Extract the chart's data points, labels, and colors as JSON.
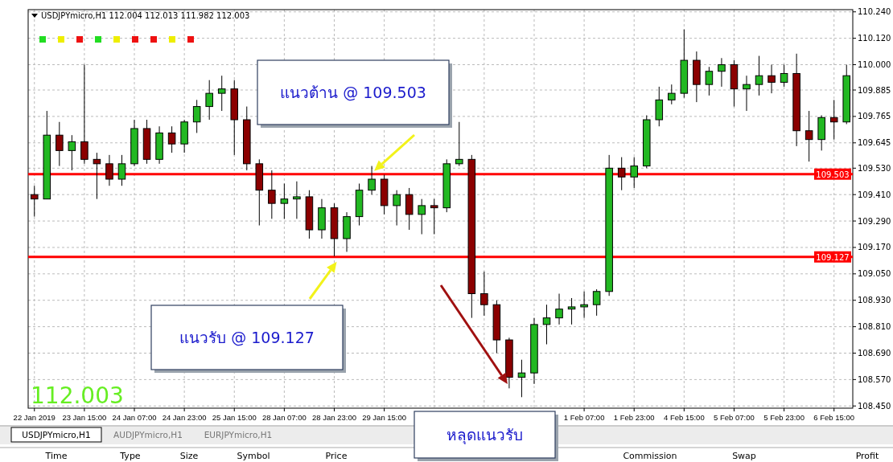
{
  "chart_data": {
    "type": "candlestick",
    "title": "USDJPYmicro,H1 112.004 112.013 111.982 112.003",
    "categories": [
      "22 Jan 2019",
      null,
      null,
      null,
      "23 Jan 15:00",
      null,
      null,
      null,
      "24 Jan 07:00",
      null,
      null,
      null,
      "24 Jan 23:00",
      null,
      null,
      null,
      "25 Jan 15:00",
      null,
      null,
      null,
      "28 Jan 07:00",
      null,
      null,
      null,
      "28 Jan 23:00",
      null,
      null,
      null,
      "29 Jan 15:00",
      null,
      null,
      null,
      null,
      null,
      null,
      null,
      null,
      null,
      null,
      null,
      null,
      null,
      null,
      null,
      "1 Feb 07:00",
      null,
      null,
      null,
      "1 Feb 23:00",
      null,
      null,
      null,
      "4 Feb 15:00",
      null,
      null,
      null,
      "5 Feb 07:00",
      null,
      null,
      null,
      "5 Feb 23:00",
      null,
      null,
      null,
      "6 Feb 15:00",
      null
    ],
    "ohlc": [
      [
        109.41,
        109.45,
        109.31,
        109.39
      ],
      [
        109.39,
        109.79,
        109.39,
        109.68
      ],
      [
        109.68,
        109.74,
        109.54,
        109.61
      ],
      [
        109.61,
        109.68,
        109.52,
        109.65
      ],
      [
        109.65,
        110.0,
        109.55,
        109.57
      ],
      [
        109.57,
        109.6,
        109.39,
        109.55
      ],
      [
        109.55,
        109.59,
        109.45,
        109.48
      ],
      [
        109.48,
        109.59,
        109.45,
        109.55
      ],
      [
        109.55,
        109.75,
        109.54,
        109.71
      ],
      [
        109.71,
        109.75,
        109.55,
        109.57
      ],
      [
        109.57,
        109.72,
        109.55,
        109.69
      ],
      [
        109.69,
        109.72,
        109.6,
        109.64
      ],
      [
        109.64,
        109.75,
        109.6,
        109.74
      ],
      [
        109.74,
        109.84,
        109.69,
        109.81
      ],
      [
        109.81,
        109.93,
        109.75,
        109.87
      ],
      [
        109.87,
        109.95,
        109.79,
        109.89
      ],
      [
        109.89,
        109.93,
        109.59,
        109.75
      ],
      [
        109.75,
        109.81,
        109.52,
        109.55
      ],
      [
        109.55,
        109.57,
        109.27,
        109.43
      ],
      [
        109.43,
        109.52,
        109.3,
        109.37
      ],
      [
        109.37,
        109.46,
        109.3,
        109.39
      ],
      [
        109.39,
        109.47,
        109.3,
        109.4
      ],
      [
        109.4,
        109.43,
        109.21,
        109.25
      ],
      [
        109.25,
        109.39,
        109.21,
        109.35
      ],
      [
        109.35,
        109.37,
        109.13,
        109.21
      ],
      [
        109.21,
        109.33,
        109.15,
        109.31
      ],
      [
        109.31,
        109.46,
        109.27,
        109.43
      ],
      [
        109.43,
        109.54,
        109.41,
        109.48
      ],
      [
        109.48,
        109.5,
        109.32,
        109.36
      ],
      [
        109.36,
        109.43,
        109.27,
        109.41
      ],
      [
        109.41,
        109.44,
        109.25,
        109.32
      ],
      [
        109.32,
        109.39,
        109.23,
        109.36
      ],
      [
        109.36,
        109.39,
        109.23,
        109.35
      ],
      [
        109.35,
        109.57,
        109.33,
        109.55
      ],
      [
        109.55,
        109.74,
        109.54,
        109.57
      ],
      [
        109.57,
        109.59,
        108.85,
        108.96
      ],
      [
        108.96,
        109.06,
        108.86,
        108.91
      ],
      [
        108.91,
        108.93,
        108.69,
        108.75
      ],
      [
        108.75,
        108.76,
        108.53,
        108.58
      ],
      [
        108.58,
        108.66,
        108.49,
        108.6
      ],
      [
        108.6,
        108.85,
        108.55,
        108.82
      ],
      [
        108.82,
        108.91,
        108.73,
        108.85
      ],
      [
        108.85,
        108.96,
        108.82,
        108.89
      ],
      [
        108.89,
        108.94,
        108.82,
        108.9
      ],
      [
        108.9,
        108.97,
        108.85,
        108.91
      ],
      [
        108.91,
        108.98,
        108.86,
        108.97
      ],
      [
        108.97,
        109.59,
        108.95,
        109.53
      ],
      [
        109.53,
        109.58,
        109.43,
        109.49
      ],
      [
        109.49,
        109.58,
        109.44,
        109.54
      ],
      [
        109.54,
        109.77,
        109.53,
        109.75
      ],
      [
        109.75,
        109.9,
        109.72,
        109.84
      ],
      [
        109.84,
        109.91,
        109.82,
        109.87
      ],
      [
        109.87,
        110.16,
        109.85,
        110.02
      ],
      [
        110.02,
        110.06,
        109.83,
        109.91
      ],
      [
        109.91,
        109.99,
        109.86,
        109.97
      ],
      [
        109.97,
        110.03,
        109.9,
        110.0
      ],
      [
        110.0,
        110.02,
        109.81,
        109.89
      ],
      [
        109.89,
        109.95,
        109.79,
        109.91
      ],
      [
        109.91,
        110.04,
        109.86,
        109.95
      ],
      [
        109.95,
        110.0,
        109.87,
        109.92
      ],
      [
        109.92,
        110.0,
        109.9,
        109.96
      ],
      [
        109.96,
        110.05,
        109.63,
        109.7
      ],
      [
        109.7,
        109.79,
        109.56,
        109.66
      ],
      [
        109.66,
        109.77,
        109.61,
        109.76
      ],
      [
        109.76,
        109.84,
        109.66,
        109.74
      ],
      [
        109.74,
        110.0,
        109.73,
        109.95
      ]
    ],
    "colors": [
      "#8b0000",
      "#22b822",
      "#8b0000",
      "#22b822",
      "#8b0000",
      "#8b0000",
      "#8b0000",
      "#22b822",
      "#22b822",
      "#8b0000",
      "#22b822",
      "#8b0000",
      "#22b822",
      "#22b822",
      "#22b822",
      "#22b822",
      "#8b0000",
      "#8b0000",
      "#8b0000",
      "#8b0000",
      "#22b822",
      "#22b822",
      "#8b0000",
      "#22b822",
      "#8b0000",
      "#22b822",
      "#22b822",
      "#22b822",
      "#8b0000",
      "#22b822",
      "#8b0000",
      "#22b822",
      "#8b0000",
      "#22b822",
      "#22b822",
      "#8b0000",
      "#8b0000",
      "#8b0000",
      "#8b0000",
      "#22b822",
      "#22b822",
      "#22b822",
      "#22b822",
      "#22b822",
      "#22b822",
      "#22b822",
      "#22b822",
      "#8b0000",
      "#22b822",
      "#22b822",
      "#22b822",
      "#22b822",
      "#22b822",
      "#8b0000",
      "#22b822",
      "#22b822",
      "#8b0000",
      "#22b822",
      "#22b822",
      "#8b0000",
      "#22b822",
      "#8b0000",
      "#8b0000",
      "#22b822",
      "#8b0000",
      "#22b822"
    ],
    "ylim": [
      108.44,
      110.25
    ],
    "yticks": [
      {
        "value": 110.24,
        "label": "110.240"
      },
      {
        "value": 110.12,
        "label": "110.120"
      },
      {
        "value": 110.0,
        "label": "110.000"
      },
      {
        "value": 109.885,
        "label": "109.885"
      },
      {
        "value": 109.765,
        "label": "109.765"
      },
      {
        "value": 109.645,
        "label": "109.645"
      },
      {
        "value": 109.53,
        "label": "109.530"
      },
      {
        "value": 109.41,
        "label": "109.410"
      },
      {
        "value": 109.29,
        "label": "109.290"
      },
      {
        "value": 109.17,
        "label": "109.170"
      },
      {
        "value": 109.05,
        "label": "109.050"
      },
      {
        "value": 108.93,
        "label": "108.930"
      },
      {
        "value": 108.81,
        "label": "108.810"
      },
      {
        "value": 108.69,
        "label": "108.690"
      },
      {
        "value": 108.57,
        "label": "108.570"
      },
      {
        "value": 108.45,
        "label": "108.450"
      }
    ],
    "grid": true,
    "ref_lines": [
      {
        "axis": "y",
        "value": 109.503,
        "label": "109.503",
        "color": "#ff0000"
      },
      {
        "axis": "y",
        "value": 109.127,
        "label": "109.127",
        "color": "#ff0000"
      }
    ],
    "annotations": [
      "แนวต้าน @ 109.503",
      "แนวรับ @ 109.127",
      "หลุดแนวรับ",
      "112.003",
      "USDJPYmicro,H1",
      "AUDJPYmicro,H1",
      "EURJPYmicro,H1",
      "Time",
      "Type",
      "Size",
      "Symbol",
      "Price",
      "Commission",
      "Swap",
      "Profit"
    ]
  }
}
